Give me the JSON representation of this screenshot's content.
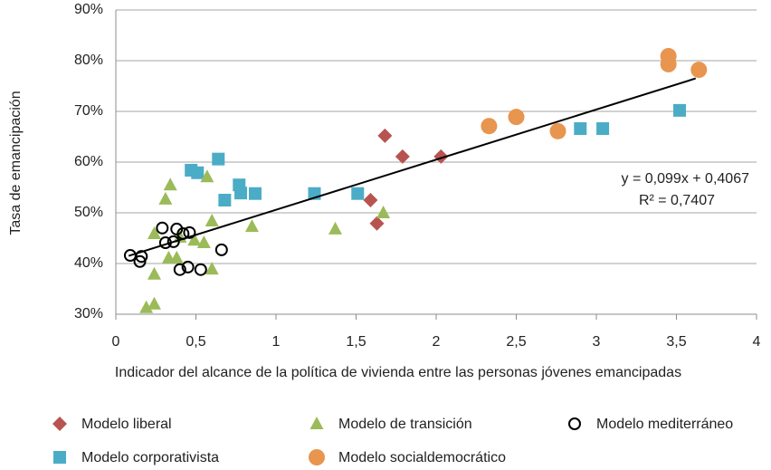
{
  "chart_data": {
    "type": "scatter",
    "x_label": "Indicador del alcance de la política de vivienda entre las personas jóvenes emancipadas",
    "y_label": "Tasa de emancipación",
    "xlim": [
      0,
      4
    ],
    "ylim": [
      30,
      90
    ],
    "xticks": [
      0,
      {
        "value": 0.5,
        "label": "0,5"
      },
      1,
      {
        "value": 1.5,
        "label": "1,5"
      },
      2,
      {
        "value": 2.5,
        "label": "2,5"
      },
      3,
      {
        "value": 3.5,
        "label": "3,5"
      },
      4
    ],
    "yticks": [
      {
        "value": 30,
        "label": "30%"
      },
      {
        "value": 40,
        "label": "40%"
      },
      {
        "value": 50,
        "label": "50%"
      },
      {
        "value": 60,
        "label": "60%"
      },
      {
        "value": 70,
        "label": "70%"
      },
      {
        "value": 80,
        "label": "80%"
      },
      {
        "value": 90,
        "label": "90%"
      }
    ],
    "grid": true,
    "series": [
      {
        "name": "Modelo liberal",
        "color": "#b85450",
        "marker": "diamond",
        "x": [
          1.68,
          1.79,
          2.03,
          1.59,
          1.63
        ],
        "values": [
          65.2,
          61.1,
          61.1,
          52.5,
          47.9
        ]
      },
      {
        "name": "Modelo corporativista",
        "color": "#4bacc6",
        "marker": "square",
        "x": [
          0.64,
          0.47,
          0.51,
          0.68,
          0.77,
          0.78,
          0.87,
          1.24,
          1.51,
          2.9,
          3.04,
          3.52
        ],
        "values": [
          60.6,
          58.4,
          57.9,
          52.5,
          55.5,
          53.9,
          53.8,
          53.8,
          53.8,
          66.6,
          66.6,
          70.2
        ]
      },
      {
        "name": "Modelo de transición",
        "color": "#9bbb59",
        "marker": "triangle",
        "x": [
          0.34,
          0.31,
          0.57,
          0.6,
          0.85,
          1.37,
          1.67,
          0.24,
          0.4,
          0.49,
          0.55,
          0.33,
          0.38,
          0.6,
          0.24,
          0.19,
          0.24
        ],
        "values": [
          55.5,
          52.7,
          57.1,
          48.4,
          47.3,
          46.8,
          50.0,
          45.9,
          45.2,
          44.6,
          44.1,
          41.1,
          41.1,
          38.9,
          37.9,
          31.3,
          32.0
        ]
      },
      {
        "name": "Modelo socialdemocrático",
        "color": "#e8954f",
        "marker": "circle",
        "x": [
          2.33,
          2.5,
          2.76,
          3.45,
          3.45,
          3.64
        ],
        "values": [
          67.1,
          68.9,
          66.1,
          80.9,
          79.3,
          78.2
        ]
      },
      {
        "name": "Modelo mediterráneo",
        "color": "#000000",
        "marker": "open-circle",
        "x": [
          0.09,
          0.16,
          0.15,
          0.29,
          0.31,
          0.36,
          0.38,
          0.42,
          0.46,
          0.4,
          0.45,
          0.53,
          0.66
        ],
        "values": [
          41.6,
          41.4,
          40.4,
          47.0,
          44.1,
          44.3,
          46.8,
          45.9,
          46.1,
          38.8,
          39.3,
          38.8,
          42.7
        ]
      }
    ],
    "trendline": {
      "color": "#000000",
      "x": [
        0.08,
        3.62
      ],
      "values": [
        41.5,
        76.5
      ]
    },
    "annotations": [
      "y = 0,099x + 0,4067",
      "R² = 0,7407"
    ]
  }
}
